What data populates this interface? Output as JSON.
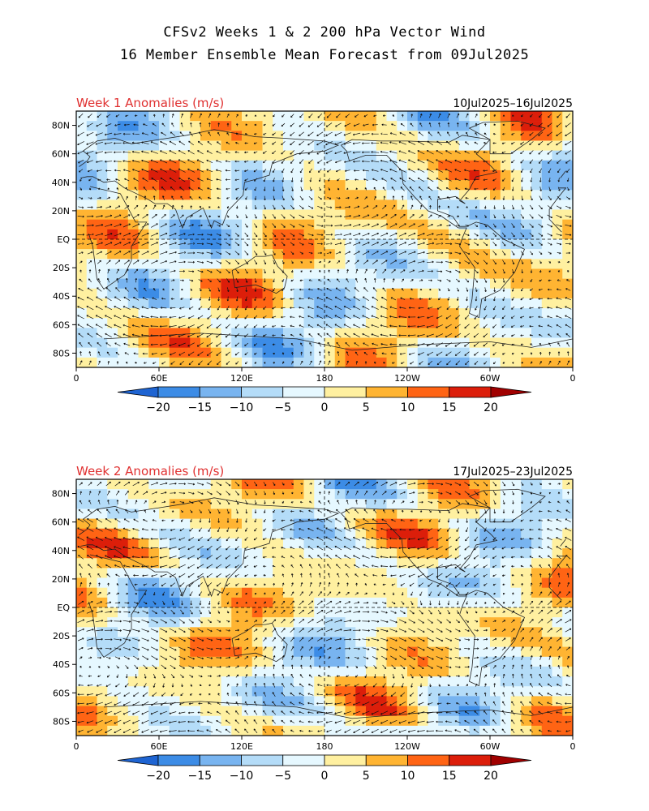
{
  "title": {
    "line1": "CFSv2 Weeks 1 & 2 200 hPa Vector Wind",
    "line2": "16 Member Ensemble Mean Forecast from 09Jul2025"
  },
  "panels": [
    {
      "label": "Week 1 Anomalies (m/s)",
      "dates": "10Jul2025–16Jul2025",
      "label_color": "#e03030"
    },
    {
      "label": "Week 2 Anomalies (m/s)",
      "dates": "17Jul2025–23Jul2025",
      "label_color": "#e03030"
    }
  ],
  "axes": {
    "lat_ticks": [
      "80N",
      "60N",
      "40N",
      "20N",
      "EQ",
      "20S",
      "40S",
      "60S",
      "80S"
    ],
    "lon_ticks": [
      "0",
      "60E",
      "120E",
      "180",
      "120W",
      "60W",
      "0"
    ]
  },
  "colorbar": {
    "labels": [
      "−20",
      "−15",
      "−10",
      "−5",
      "0",
      "5",
      "10",
      "15",
      "20"
    ],
    "colors": [
      "#1e64d2",
      "#3c8ce6",
      "#78b4f0",
      "#b4dcf8",
      "#e6f8ff",
      "#fff0a0",
      "#ffb432",
      "#ff6414",
      "#dc1e0a",
      "#a00000"
    ]
  }
}
